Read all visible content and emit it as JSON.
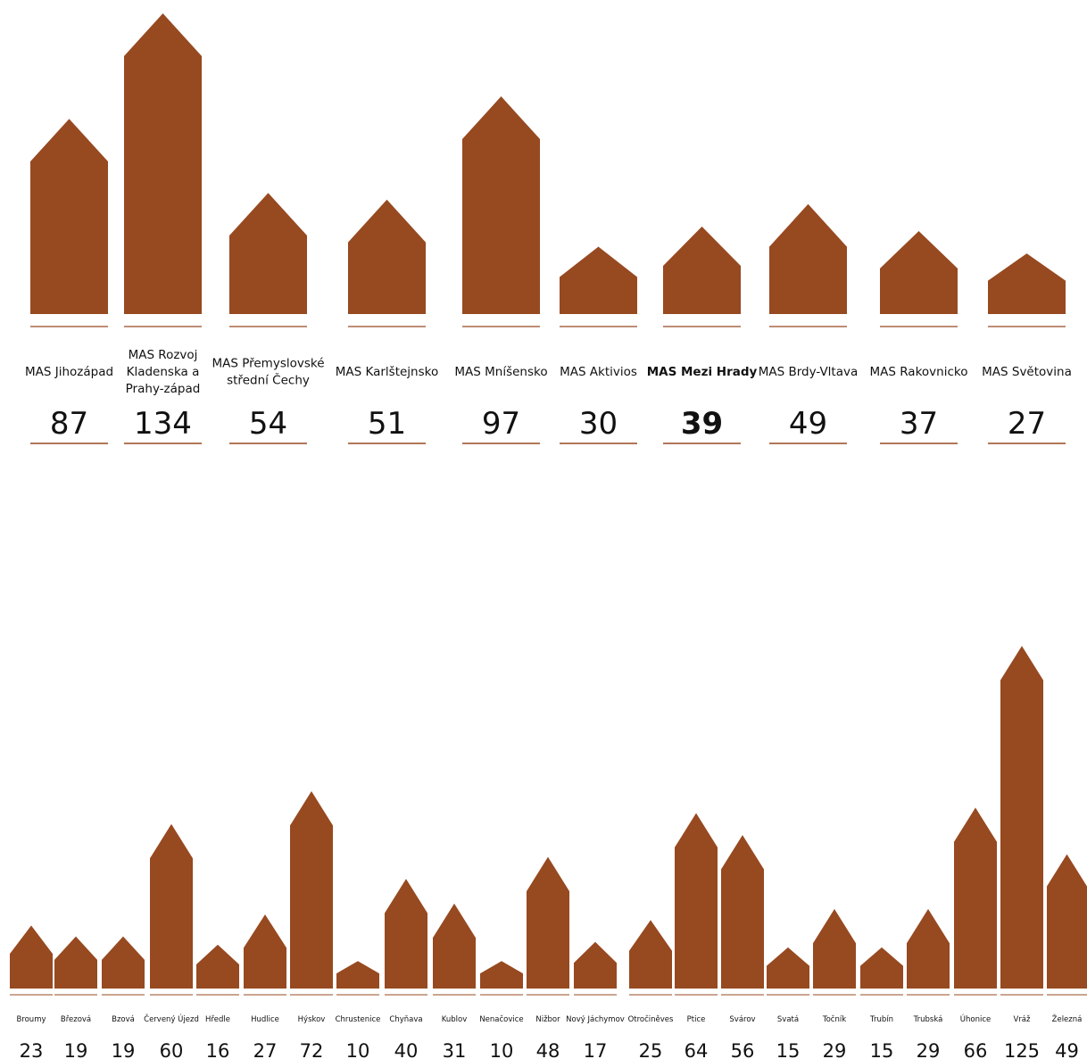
{
  "colors": {
    "bar": "#974920",
    "line": "#974920",
    "text": "#111111"
  },
  "chart_data": [
    {
      "type": "bar",
      "title": "",
      "categories": [
        "MAS Jihozápad",
        "MAS Rozvoj Kladenska a Prahy-západ",
        "MAS Přemyslovské střední Čechy",
        "MAS Karlštejnsko",
        "MAS Mníšensko",
        "MAS Aktivios",
        "MAS Mezi Hrady",
        "MAS Brdy-Vltava",
        "MAS Rakovnicko",
        "MAS Světovina"
      ],
      "label_lines": [
        [
          "MAS Jihozápad"
        ],
        [
          "MAS Rozvoj",
          "Kladenska a",
          "Prahy-západ"
        ],
        [
          "MAS Přemyslovské",
          "střední Čechy"
        ],
        [
          "MAS Karlštejnsko"
        ],
        [
          "MAS Mníšensko"
        ],
        [
          "MAS Aktivios"
        ],
        [
          "MAS Mezi Hrady"
        ],
        [
          "MAS Brdy-Vltava"
        ],
        [
          "MAS Rakovnicko"
        ],
        [
          "MAS Světovina"
        ]
      ],
      "values": [
        87,
        134,
        54,
        51,
        97,
        30,
        39,
        49,
        37,
        27
      ],
      "highlighted": "MAS Mezi Hrady",
      "bar_shape": "house"
    },
    {
      "type": "bar",
      "title": "",
      "categories": [
        "Broumy",
        "Březová",
        "Bzová",
        "Červený Újezd",
        "Hředle",
        "Hudlice",
        "Hýskov",
        "Chrustenice",
        "Chyňava",
        "Kublov",
        "Nenačovice",
        "Nižbor",
        "Nový Jáchymov",
        "Otročiněves",
        "Ptice",
        "Svárov",
        "Svatá",
        "Točník",
        "Trubín",
        "Trubská",
        "Úhonice",
        "Vráž",
        "Železná"
      ],
      "values": [
        23,
        19,
        19,
        60,
        16,
        27,
        72,
        10,
        40,
        31,
        10,
        48,
        17,
        25,
        64,
        56,
        15,
        29,
        15,
        29,
        66,
        125,
        49
      ],
      "bar_shape": "house"
    }
  ]
}
